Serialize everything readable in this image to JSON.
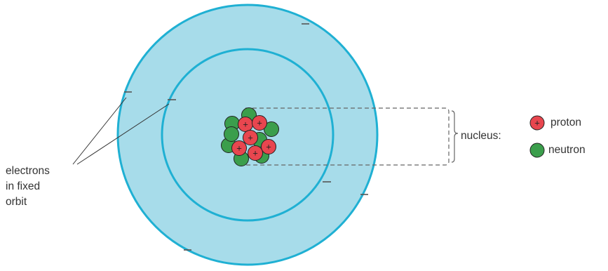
{
  "diagram": {
    "electrons_label_lines": [
      "electrons",
      "in fixed",
      "orbit"
    ],
    "nucleus_label": "nucleus:",
    "legend": {
      "proton": {
        "label": "proton",
        "symbol": "+",
        "color": "#e8464f"
      },
      "neutron": {
        "label": "neutron",
        "color": "#3b9e4c"
      }
    },
    "electron_symbol": "–",
    "colors": {
      "orbit_fill": "#a7dcea",
      "orbit_ring": "#1fb0d3",
      "proton": "#e8464f",
      "neutron": "#3b9e4c"
    }
  }
}
